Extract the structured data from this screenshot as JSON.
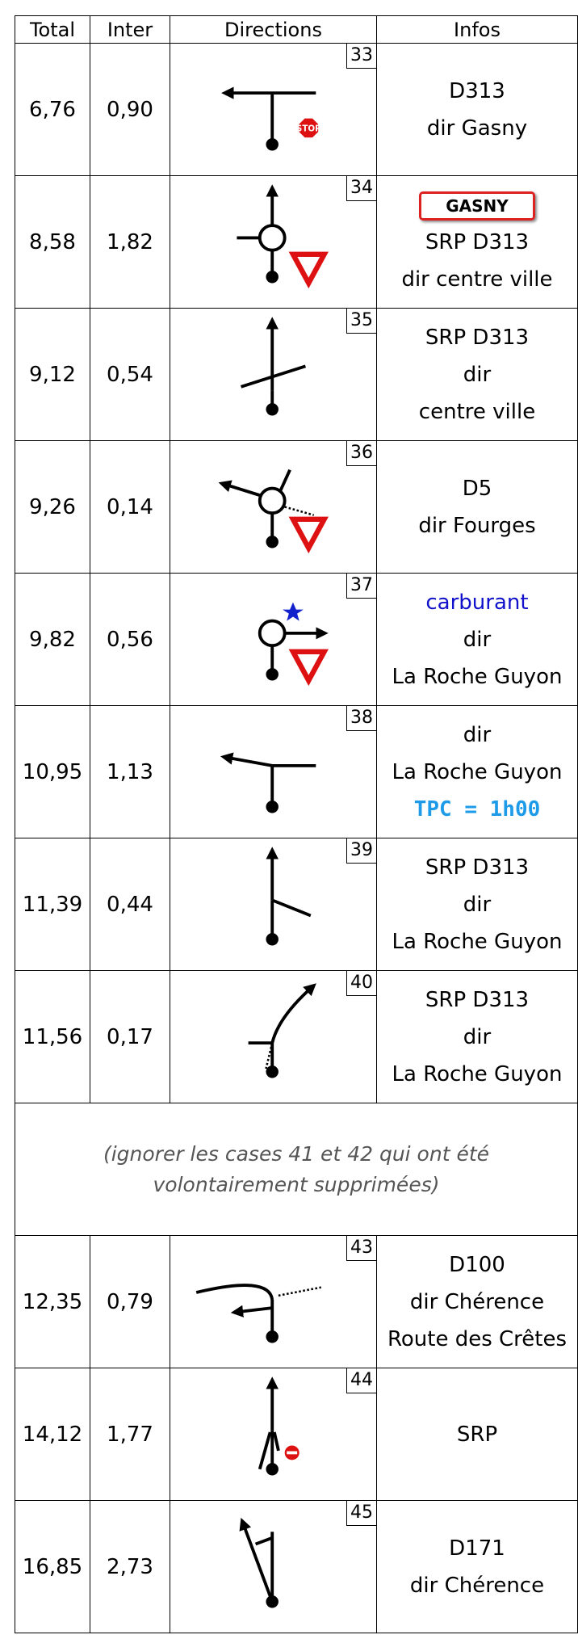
{
  "header": {
    "total": "Total",
    "inter": "Inter",
    "directions": "Directions",
    "infos": "Infos"
  },
  "rows": [
    {
      "total": "6,76",
      "inter": "0,90",
      "case": "33",
      "sign": "STOP",
      "infos": [
        "D313",
        "dir Gasny"
      ]
    },
    {
      "total": "8,58",
      "inter": "1,82",
      "case": "34",
      "panel": "GASNY",
      "infos": [
        "SRP D313",
        "dir centre ville"
      ]
    },
    {
      "total": "9,12",
      "inter": "0,54",
      "case": "35",
      "infos": [
        "SRP D313",
        "dir",
        "centre ville"
      ]
    },
    {
      "total": "9,26",
      "inter": "0,14",
      "case": "36",
      "infos": [
        "D5",
        "dir Fourges"
      ]
    },
    {
      "total": "9,82",
      "inter": "0,56",
      "case": "37",
      "fuel": "carburant",
      "infos": [
        "dir",
        "La Roche Guyon"
      ]
    },
    {
      "total": "10,95",
      "inter": "1,13",
      "case": "38",
      "infos": [
        "dir",
        "La Roche Guyon"
      ],
      "highlight": "TPC = 1h00"
    },
    {
      "total": "11,39",
      "inter": "0,44",
      "case": "39",
      "infos": [
        "SRP D313",
        "dir",
        "La Roche Guyon"
      ]
    },
    {
      "total": "11,56",
      "inter": "0,17",
      "case": "40",
      "infos": [
        "SRP D313",
        "dir",
        "La Roche Guyon"
      ]
    },
    {
      "total": "12,35",
      "inter": "0,79",
      "case": "43",
      "infos": [
        "D100",
        "dir Chérence",
        "Route des Crêtes"
      ]
    },
    {
      "total": "14,12",
      "inter": "1,77",
      "case": "44",
      "infos": [
        "SRP"
      ]
    },
    {
      "total": "16,85",
      "inter": "2,73",
      "case": "45",
      "infos": [
        "D171",
        "dir Chérence"
      ]
    }
  ],
  "note": "(ignorer les cases 41 et 42 qui ont été volontairement supprimées)"
}
